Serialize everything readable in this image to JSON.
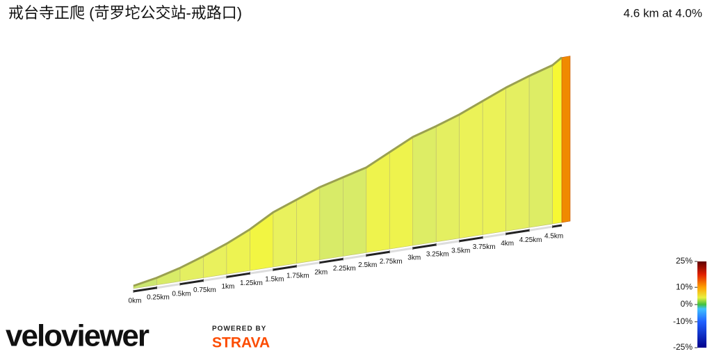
{
  "chart_data": {
    "type": "area",
    "title": "戒台寺正爬 (苛罗坨公交站-戒路口)",
    "subtitle": "4.6 km at 4.0%",
    "x": [
      0,
      0.25,
      0.5,
      0.75,
      1,
      1.25,
      1.5,
      1.75,
      2,
      2.25,
      2.5,
      2.75,
      3,
      3.25,
      3.5,
      3.75,
      4,
      4.25,
      4.5,
      4.6
    ],
    "values": [
      3,
      8,
      15,
      24,
      34,
      46,
      61,
      71,
      81,
      88,
      95,
      108,
      121,
      129,
      138,
      149,
      160,
      169,
      177,
      184
    ],
    "xlim": [
      0,
      4.6
    ],
    "ylim": [
      0,
      200
    ],
    "xticks": [
      {
        "value": 0,
        "label": "0km"
      },
      {
        "value": 0.25,
        "label": "0.25km"
      },
      {
        "value": 0.5,
        "label": "0.5km"
      },
      {
        "value": 0.75,
        "label": "0.75km"
      },
      {
        "value": 1,
        "label": "1km"
      },
      {
        "value": 1.25,
        "label": "1.25km"
      },
      {
        "value": 1.5,
        "label": "1.5km"
      },
      {
        "value": 1.75,
        "label": "1.75km"
      },
      {
        "value": 2,
        "label": "2km"
      },
      {
        "value": 2.25,
        "label": "2.25km"
      },
      {
        "value": 2.5,
        "label": "2.5km"
      },
      {
        "value": 2.75,
        "label": "2.75km"
      },
      {
        "value": 3,
        "label": "3km"
      },
      {
        "value": 3.25,
        "label": "3.25km"
      },
      {
        "value": 3.5,
        "label": "3.5km"
      },
      {
        "value": 3.75,
        "label": "3.75km"
      },
      {
        "value": 4,
        "label": "4km"
      },
      {
        "value": 4.25,
        "label": "4.25km"
      },
      {
        "value": 4.5,
        "label": "4.5km"
      }
    ],
    "colorbar_lim": [
      -25,
      25
    ],
    "colorbar_ticks": [
      {
        "value": 25,
        "label": "25%"
      },
      {
        "value": 10,
        "label": "10%"
      },
      {
        "value": 0,
        "label": "0%"
      },
      {
        "value": -10,
        "label": "-10%"
      },
      {
        "value": -25,
        "label": "-25%"
      }
    ],
    "brand": "veloviewer",
    "powered_by": "POWERED BY",
    "partner": "STRAVA"
  }
}
